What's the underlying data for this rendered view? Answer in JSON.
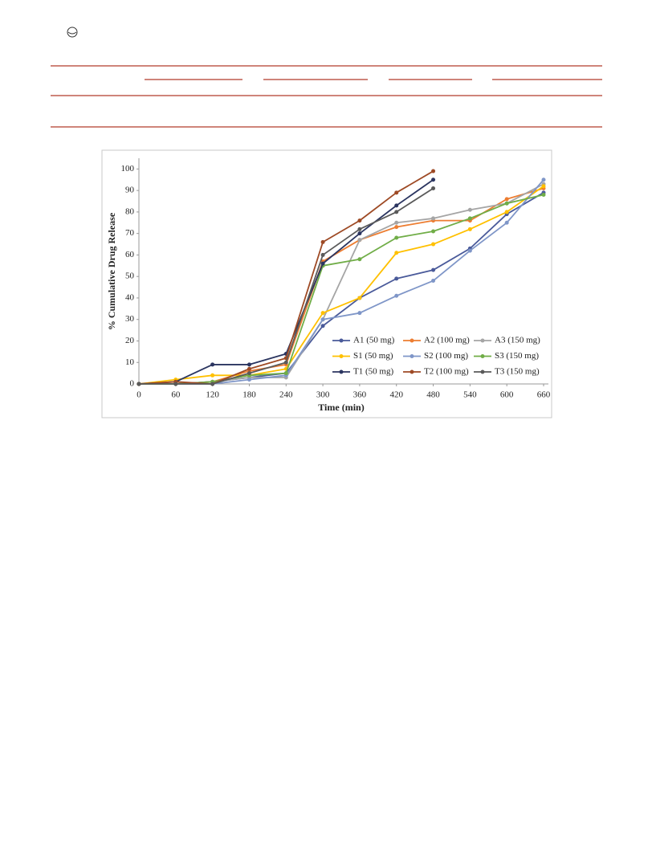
{
  "chart_data": {
    "type": "line",
    "x_label": "Time (min)",
    "y_label": "% Cumulative Drug Release",
    "x": [
      0,
      60,
      120,
      180,
      240,
      300,
      360,
      420,
      480,
      540,
      600,
      660
    ],
    "xlim": [
      0,
      660
    ],
    "xticks": [
      0,
      60,
      120,
      180,
      240,
      300,
      360,
      420,
      480,
      540,
      600,
      660
    ],
    "ylim": [
      0,
      105
    ],
    "yticks": [
      0,
      10,
      20,
      30,
      40,
      50,
      60,
      70,
      80,
      90,
      100
    ],
    "legend": "lower right",
    "series": [
      {
        "name": "A1 (50 mg)",
        "color": "#4a5a9a",
        "values": [
          0,
          0,
          1,
          3,
          5,
          27,
          40,
          49,
          53,
          63,
          79,
          89
        ]
      },
      {
        "name": "A2 (100 mg)",
        "color": "#ed7d31",
        "values": [
          0,
          0,
          1,
          6,
          9,
          57,
          67,
          73,
          76,
          76,
          86,
          91
        ]
      },
      {
        "name": "A3 (150 mg)",
        "color": "#a5a5a5",
        "values": [
          0,
          0,
          1,
          3,
          3,
          30,
          67,
          75,
          77,
          81,
          84,
          93
        ]
      },
      {
        "name": "S1 (50 mg)",
        "color": "#ffc000",
        "values": [
          0,
          2,
          4,
          4,
          7,
          33,
          40,
          61,
          65,
          72,
          80,
          92
        ]
      },
      {
        "name": "S2 (100 mg)",
        "color": "#7f96c8",
        "values": [
          0,
          0,
          0,
          2,
          4,
          30,
          33,
          41,
          48,
          62,
          75,
          95
        ]
      },
      {
        "name": "S3 (150 mg)",
        "color": "#70ad47",
        "values": [
          0,
          0,
          1,
          4,
          5,
          55,
          58,
          68,
          71,
          77,
          84,
          88
        ]
      },
      {
        "name": "T1 (50 mg)",
        "color": "#2b3560",
        "values": [
          0,
          1,
          9,
          9,
          14,
          56,
          70,
          83,
          95,
          null,
          null,
          null
        ]
      },
      {
        "name": "T2 (100 mg)",
        "color": "#9e4a25",
        "values": [
          0,
          1,
          0,
          7,
          12,
          66,
          76,
          89,
          99,
          null,
          null,
          null
        ]
      },
      {
        "name": "T3 (150 mg)",
        "color": "#5a5a5a",
        "values": [
          0,
          0,
          0,
          5,
          10,
          60,
          72,
          80,
          91,
          null,
          null,
          null
        ]
      }
    ]
  }
}
